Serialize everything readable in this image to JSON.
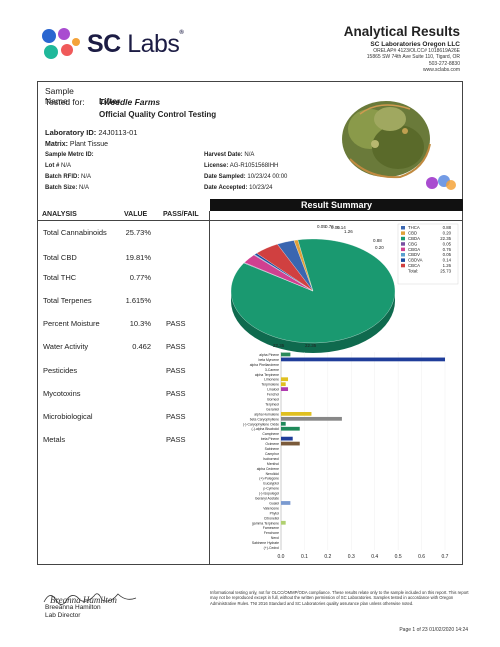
{
  "header": {
    "logo_sc": "SC",
    "logo_labs": "Labs",
    "title": "Analytical Results",
    "lab_name": "SC Laboratories Oregon LLC",
    "lines": [
      "ORELAP# 4123/OLCC# 1018619A26E",
      "15865 SW 74th Ave Suite 110, Tigard, OR",
      "503-272-8830",
      "www.sclabs.com"
    ]
  },
  "sample": {
    "name_label": "Sample Name:",
    "name": "Lifter",
    "tested_label": "Tested for:",
    "tested_for": "Tweedle Farms",
    "qc_title": "Official Quality Control Testing",
    "lab_id_label": "Laboratory ID:",
    "lab_id": "24J0113-01",
    "matrix_label": "Matrix:",
    "matrix": "Plant Tissue",
    "left_fields": [
      {
        "label": "Sample Metrc ID:",
        "value": ""
      },
      {
        "label": "Lot #",
        "value": "N/A"
      },
      {
        "label": "Batch RFID:",
        "value": "N/A"
      },
      {
        "label": "Batch Size:",
        "value": "N/A"
      }
    ],
    "right_fields": [
      {
        "label": "Harvest Date:",
        "value": "N/A"
      },
      {
        "label": "License:",
        "value": "AG-R1051568IHH"
      },
      {
        "label": "Date Sampled:",
        "value": "10/23/24  00:00"
      },
      {
        "label": "Date Accepted:",
        "value": "10/23/24"
      }
    ]
  },
  "summary": {
    "title": "Result Summary",
    "col_analysis": "ANALYSIS",
    "col_value": "VALUE",
    "col_pass": "PASS/FAIL",
    "rows": [
      {
        "analysis": "Total Cannabinoids",
        "value": "25.73",
        "unit": "%",
        "pass": ""
      },
      {
        "analysis": "Total CBD",
        "value": "19.81",
        "unit": "%",
        "pass": ""
      },
      {
        "analysis": "Total THC",
        "value": "0.77",
        "unit": "%",
        "pass": ""
      },
      {
        "analysis": "Total Terpenes",
        "value": "1.615",
        "unit": "%",
        "pass": ""
      },
      {
        "analysis": "Percent Moisture",
        "value": "10.3",
        "unit": "%",
        "pass": "PASS"
      },
      {
        "analysis": "Water Activity",
        "value": "0.462",
        "unit": "",
        "pass": "PASS"
      },
      {
        "analysis": "Pesticides",
        "value": "",
        "unit": "",
        "pass": "PASS"
      },
      {
        "analysis": "Mycotoxins",
        "value": "",
        "unit": "",
        "pass": "PASS"
      },
      {
        "analysis": "Microbiological",
        "value": "",
        "unit": "",
        "pass": "PASS"
      },
      {
        "analysis": "Metals",
        "value": "",
        "unit": "",
        "pass": "PASS"
      }
    ]
  },
  "chart_data": [
    {
      "type": "pie",
      "labels": [
        "THCA",
        "CBD",
        "CBDA",
        "CBG",
        "CBGA",
        "CBDV",
        "CBDVA",
        "CBCA"
      ],
      "values": [
        0.88,
        0.2,
        22.35,
        0.05,
        0.76,
        0.05,
        0.14,
        1.26
      ],
      "colors": [
        "#3a66b0",
        "#e0a13a",
        "#1a9970",
        "#7a4fa0",
        "#d04090",
        "#5aa0d0",
        "#1a4aa0",
        "#d04040"
      ],
      "total_label": "Total:",
      "total": "25.73",
      "slice_labels": [
        "0.05",
        "0.76",
        "0.05",
        "0.14",
        "1.26",
        "0.88",
        "0.20",
        "22.35"
      ]
    },
    {
      "type": "bar",
      "categories": [
        "alpha Pinene",
        "beta Myrcene",
        "alpha Phellandrene",
        "3-Carene",
        "alpha Terpinene",
        "Limonene",
        "Terpinolene",
        "Linalool",
        "Fenchol",
        "Borneol",
        "Terpineol",
        "Geraniol",
        "alpha Humulene",
        "beta Caryophyllene",
        "(-)-Caryophyllene Oxide",
        "(-)-alpha Bisabolol",
        "Camphene",
        "beta Pinene",
        "Ocimene",
        "Sabinene",
        "Camphor",
        "Isoborneol",
        "Menthol",
        "alpha Cedrene",
        "Nerolidol",
        "(+)-Pulegone",
        "Eucalyptol",
        "p-Cymene",
        "(-)-Isopulegol",
        "Geranyl Acetate",
        "Guaiol",
        "Valencene",
        "Phytol",
        "Citronellol",
        "gamma Terpinene",
        "Farnesene",
        "Fenchone",
        "Nerol",
        "Sabinene Hydrate",
        "(+)-Cedrol"
      ],
      "values": [
        0.04,
        0.7,
        0,
        0,
        0,
        0.03,
        0.02,
        0.03,
        0,
        0,
        0,
        0,
        0.13,
        0.26,
        0.02,
        0.08,
        0,
        0.05,
        0.08,
        0,
        0,
        0,
        0,
        0,
        0,
        0,
        0,
        0,
        0,
        0,
        0.04,
        0,
        0,
        0,
        0.02,
        0,
        0,
        0,
        0,
        0
      ],
      "colors": [
        "#2a8a5a",
        "#1f3d9a",
        "#aaa",
        "#aaa",
        "#aaa",
        "#e0c020",
        "#e0c020",
        "#b03ab0",
        "#aaa",
        "#aaa",
        "#aaa",
        "#aaa",
        "#e0c020",
        "#888888",
        "#1f8a5a",
        "#1f8a5a",
        "#aaa",
        "#1f3d9a",
        "#7a5a3a",
        "#aaa",
        "#aaa",
        "#aaa",
        "#aaa",
        "#aaa",
        "#aaa",
        "#aaa",
        "#aaa",
        "#aaa",
        "#aaa",
        "#aaa",
        "#7a9ad0",
        "#aaa",
        "#aaa",
        "#aaa",
        "#b0d070",
        "#aaa",
        "#aaa",
        "#aaa",
        "#aaa",
        "#aaa"
      ],
      "xticks": [
        "0.0",
        "0.1",
        "0.2",
        "0.3",
        "0.4",
        "0.5",
        "0.6",
        "0.7"
      ],
      "xlim": [
        0,
        0.7
      ],
      "annotation": "22.35"
    }
  ],
  "footer": {
    "signature": "Breanna Hamilton",
    "signer_name": "Breeanna Hamilton",
    "signer_title": "Lab Director",
    "disclaimer": "Informational testing only, not for OLCC/OMMP/ODA compliance. These results relate only to the sample included on this report. This report may not be reproduced except in full, without the written permission of SC Laboratories. Samples tested in accordance with Oregon Administrative Rules. TNI 2016 Standard and SC Laboratories quality assurance plan unless otherwise noted.",
    "page": "Page 1 of 23  01/02/2020 14:24"
  }
}
